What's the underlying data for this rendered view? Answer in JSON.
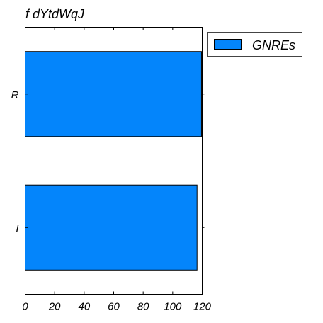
{
  "chart_data": {
    "type": "bar",
    "orientation": "horizontal",
    "title": "f dYtdWqJ",
    "xlabel": "",
    "ylabel": "",
    "categories": [
      "I",
      "R"
    ],
    "series": [
      {
        "name": "GNREs",
        "values": [
          116.5,
          119.5
        ],
        "color": "#0485fb"
      }
    ],
    "xlim": [
      0,
      120
    ],
    "xticks": [
      0,
      20,
      40,
      60,
      80,
      100,
      120
    ],
    "xtick_labels": [
      "0",
      "20",
      "40",
      "60",
      "80",
      "100",
      "120"
    ],
    "grid": false,
    "legend_position": "outside-right-top"
  }
}
